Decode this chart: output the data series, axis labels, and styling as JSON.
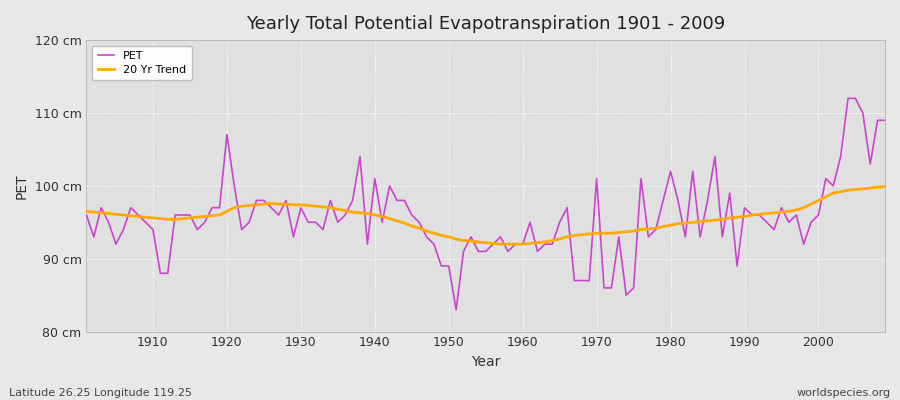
{
  "title": "Yearly Total Potential Evapotranspiration 1901 - 2009",
  "xlabel": "Year",
  "ylabel": "PET",
  "subtitle_left": "Latitude 26.25 Longitude 119.25",
  "subtitle_right": "worldspecies.org",
  "pet_color": "#cc44cc",
  "trend_color": "#ffaa00",
  "fig_bg_color": "#e8e8e8",
  "plot_bg_color": "#e0e0e0",
  "ylim": [
    80,
    120
  ],
  "yticks": [
    80,
    90,
    100,
    110,
    120
  ],
  "ytick_labels": [
    "80 cm",
    "90 cm",
    "100 cm",
    "110 cm",
    "120 cm"
  ],
  "years": [
    1901,
    1902,
    1903,
    1904,
    1905,
    1906,
    1907,
    1908,
    1909,
    1910,
    1911,
    1912,
    1913,
    1914,
    1915,
    1916,
    1917,
    1918,
    1919,
    1920,
    1921,
    1922,
    1923,
    1924,
    1925,
    1926,
    1927,
    1928,
    1929,
    1930,
    1931,
    1932,
    1933,
    1934,
    1935,
    1936,
    1937,
    1938,
    1939,
    1940,
    1941,
    1942,
    1943,
    1944,
    1945,
    1946,
    1947,
    1948,
    1949,
    1950,
    1951,
    1952,
    1953,
    1954,
    1955,
    1956,
    1957,
    1958,
    1959,
    1960,
    1961,
    1962,
    1963,
    1964,
    1965,
    1966,
    1967,
    1968,
    1969,
    1970,
    1971,
    1972,
    1973,
    1974,
    1975,
    1976,
    1977,
    1978,
    1979,
    1980,
    1981,
    1982,
    1983,
    1984,
    1985,
    1986,
    1987,
    1988,
    1989,
    1990,
    1991,
    1992,
    1993,
    1994,
    1995,
    1996,
    1997,
    1998,
    1999,
    2000,
    2001,
    2002,
    2003,
    2004,
    2005,
    2006,
    2007,
    2008,
    2009
  ],
  "pet_values": [
    96,
    93,
    97,
    95,
    92,
    94,
    97,
    96,
    95,
    94,
    88,
    88,
    96,
    96,
    96,
    94,
    95,
    97,
    97,
    107,
    100,
    94,
    95,
    98,
    98,
    97,
    96,
    98,
    93,
    97,
    95,
    95,
    94,
    98,
    95,
    96,
    98,
    104,
    92,
    101,
    95,
    100,
    98,
    98,
    96,
    95,
    93,
    92,
    89,
    89,
    83,
    91,
    93,
    91,
    91,
    92,
    93,
    91,
    92,
    92,
    95,
    91,
    92,
    92,
    95,
    97,
    87,
    87,
    87,
    101,
    86,
    86,
    93,
    85,
    86,
    101,
    93,
    94,
    98,
    102,
    98,
    93,
    102,
    93,
    98,
    104,
    93,
    99,
    89,
    97,
    96,
    96,
    95,
    94,
    97,
    95,
    96,
    92,
    95,
    96,
    101,
    100,
    104,
    112,
    112,
    110,
    103,
    109,
    109
  ],
  "trend_values": [
    96.5,
    96.4,
    96.3,
    96.2,
    96.1,
    96.0,
    95.9,
    95.8,
    95.7,
    95.6,
    95.5,
    95.4,
    95.4,
    95.5,
    95.6,
    95.7,
    95.8,
    95.9,
    96.0,
    96.5,
    97.0,
    97.2,
    97.3,
    97.4,
    97.5,
    97.6,
    97.5,
    97.5,
    97.4,
    97.4,
    97.3,
    97.2,
    97.1,
    97.0,
    96.8,
    96.6,
    96.4,
    96.3,
    96.2,
    96.0,
    95.8,
    95.5,
    95.2,
    94.9,
    94.5,
    94.2,
    93.8,
    93.5,
    93.2,
    93.0,
    92.7,
    92.5,
    92.4,
    92.3,
    92.2,
    92.1,
    92.0,
    92.0,
    92.0,
    92.0,
    92.1,
    92.2,
    92.3,
    92.5,
    92.7,
    93.0,
    93.2,
    93.3,
    93.4,
    93.5,
    93.5,
    93.5,
    93.6,
    93.7,
    93.8,
    94.0,
    94.1,
    94.2,
    94.4,
    94.6,
    94.8,
    94.9,
    95.0,
    95.1,
    95.2,
    95.3,
    95.4,
    95.6,
    95.7,
    95.8,
    96.0,
    96.1,
    96.2,
    96.3,
    96.4,
    96.5,
    96.7,
    97.0,
    97.5,
    98.0,
    98.5,
    99.0,
    99.2,
    99.4,
    99.5,
    99.6,
    99.7,
    99.8,
    99.9
  ]
}
